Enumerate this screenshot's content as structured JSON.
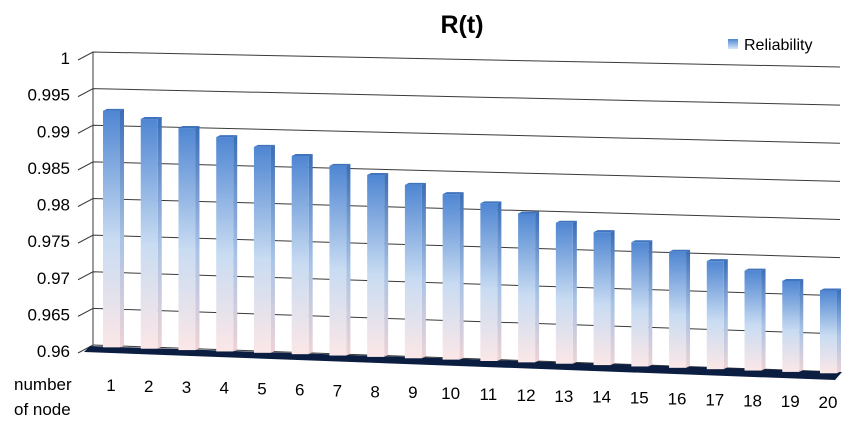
{
  "chart_data": {
    "type": "bar",
    "title": "R(t)",
    "xlabel_lines": [
      "number",
      "of node"
    ],
    "ylabel": "",
    "categories": [
      "1",
      "2",
      "3",
      "4",
      "5",
      "6",
      "7",
      "8",
      "9",
      "10",
      "11",
      "12",
      "13",
      "14",
      "15",
      "16",
      "17",
      "18",
      "19",
      "20"
    ],
    "series": [
      {
        "name": "Reliability",
        "values": [
          0.992,
          0.991,
          0.9899,
          0.9888,
          0.9876,
          0.9865,
          0.9853,
          0.9842,
          0.983,
          0.9819,
          0.9808,
          0.9796,
          0.9785,
          0.9774,
          0.9762,
          0.9751,
          0.974,
          0.9729,
          0.9717,
          0.9706
        ]
      }
    ],
    "ylim": [
      0.96,
      1
    ],
    "yticks": [
      "1",
      "0.995",
      "0.99",
      "0.985",
      "0.98",
      "0.975",
      "0.97",
      "0.965",
      "0.96"
    ],
    "grid": true,
    "legend_position": "top-right",
    "style": "3d-column",
    "colors": {
      "bar_top": "#5b8fd6",
      "bar_bottom": "#fbe6e6",
      "floor": "#0a1a3a",
      "grid": "#444444"
    }
  }
}
